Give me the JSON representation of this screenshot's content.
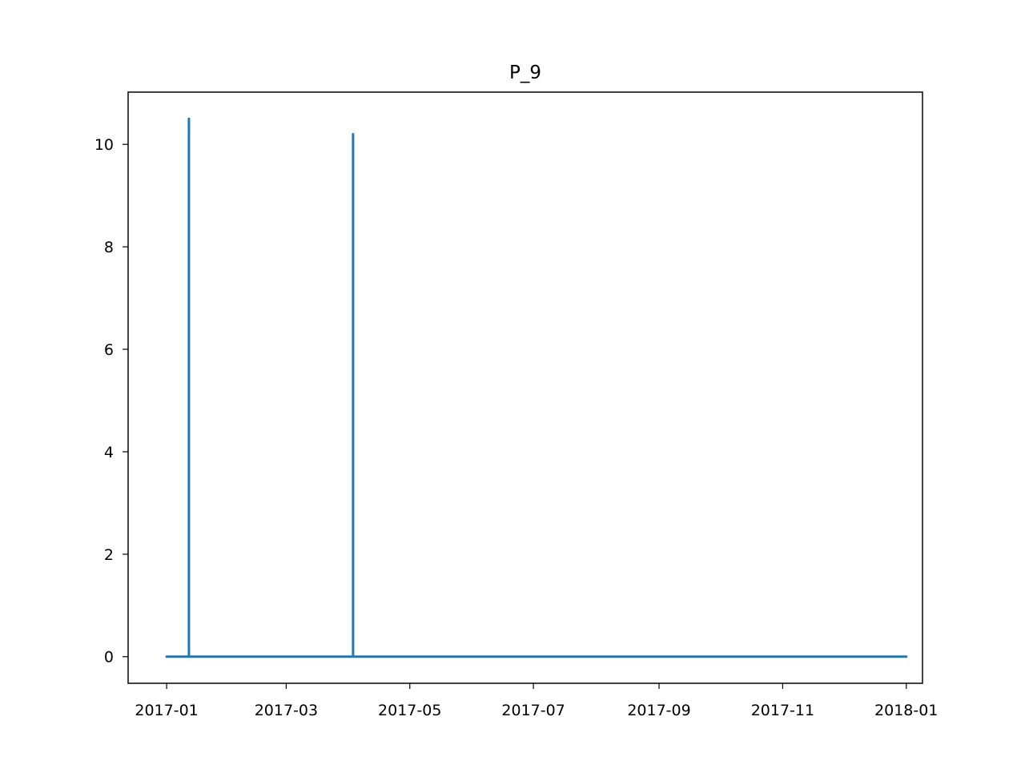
{
  "chart_data": {
    "type": "line",
    "title": "P_9",
    "xlabel": "",
    "ylabel": "",
    "x_axis_type": "date",
    "xlim": [
      "2016-12-13",
      "2018-01-09"
    ],
    "ylim": [
      -0.52,
      11.02
    ],
    "x_ticks": [
      "2017-01",
      "2017-03",
      "2017-05",
      "2017-07",
      "2017-09",
      "2017-11",
      "2018-01"
    ],
    "y_ticks": [
      0,
      2,
      4,
      6,
      8,
      10
    ],
    "grid": false,
    "legend": "none",
    "series": [
      {
        "color": "#1f77b4",
        "points": [
          {
            "x": "2017-01-01",
            "y": 0
          },
          {
            "x": "2017-01-12",
            "y": 0
          },
          {
            "x": "2017-01-12",
            "y": 10.5
          },
          {
            "x": "2017-01-12",
            "y": 0
          },
          {
            "x": "2017-04-03",
            "y": 0
          },
          {
            "x": "2017-04-03",
            "y": 10.2
          },
          {
            "x": "2017-04-03",
            "y": 0
          },
          {
            "x": "2018-01-01",
            "y": 0
          }
        ]
      }
    ]
  }
}
